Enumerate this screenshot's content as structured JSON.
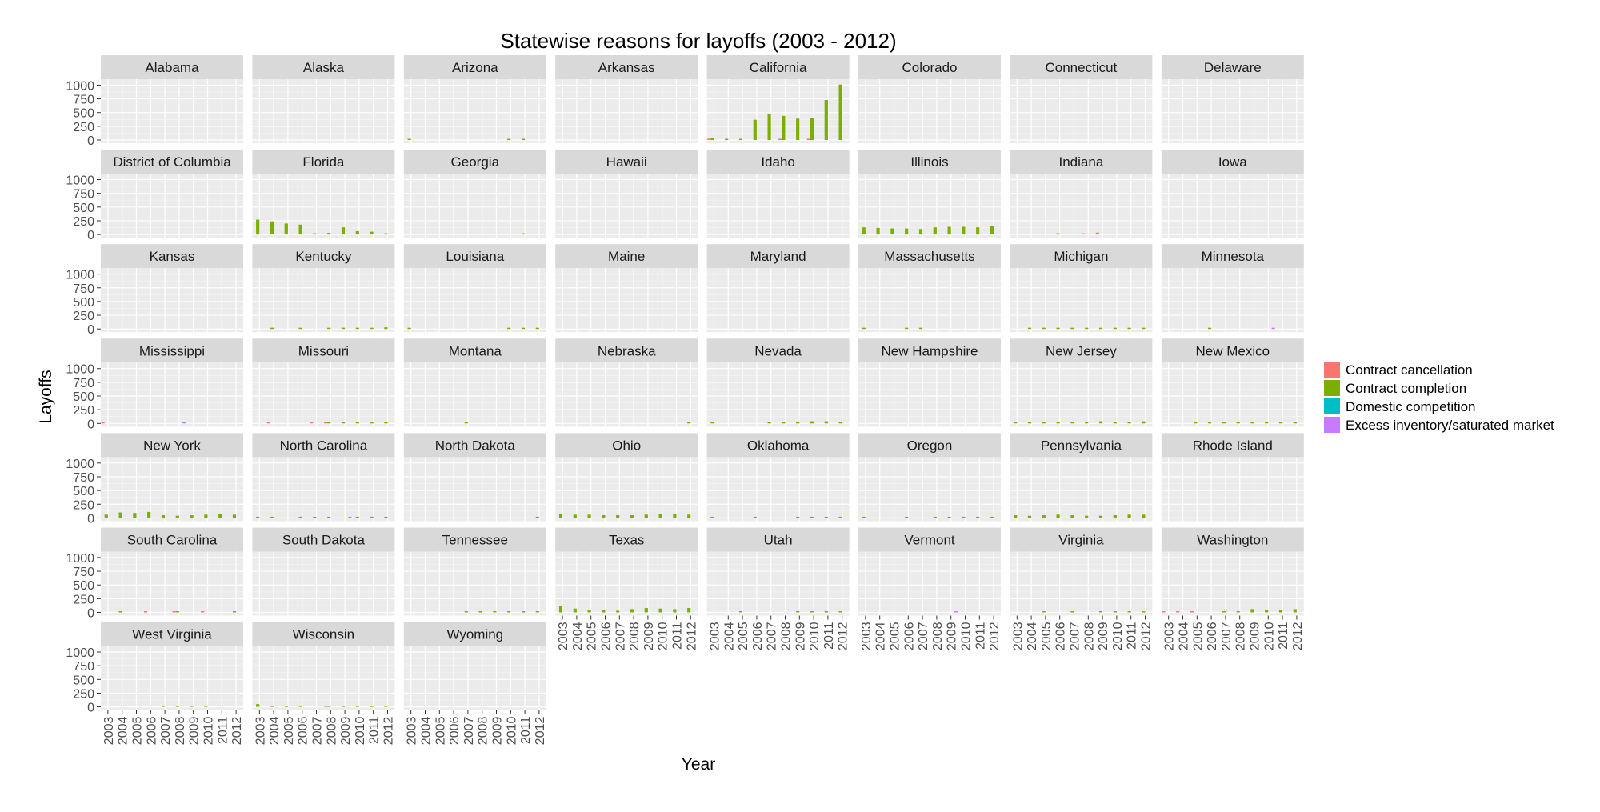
{
  "chart_data": {
    "type": "bar",
    "title": "Statewise reasons for layoffs (2003 - 2012)",
    "xlabel": "Year",
    "ylabel": "Layoffs",
    "ylim": [
      0,
      1050
    ],
    "y_ticks": [
      0,
      250,
      500,
      750,
      1000
    ],
    "y_tick_labels": [
      "0",
      "250",
      "500",
      "750",
      "1000"
    ],
    "years": [
      "2003",
      "2004",
      "2005",
      "2006",
      "2007",
      "2008",
      "2009",
      "2010",
      "2011",
      "2012"
    ],
    "grid": true,
    "legend_position": "right",
    "series": [
      {
        "name": "Contract cancellation",
        "color": "#F8766D"
      },
      {
        "name": "Contract completion",
        "color": "#7CAE00"
      },
      {
        "name": "Domestic competition",
        "color": "#00BFC4"
      },
      {
        "name": "Excess inventory/saturated market",
        "color": "#C77CFF"
      }
    ],
    "facets": [
      {
        "state": "Alabama",
        "bars": []
      },
      {
        "state": "Alaska",
        "bars": []
      },
      {
        "state": "Arizona",
        "bars": [
          [
            0,
            1,
            10
          ],
          [
            7,
            1,
            8
          ],
          [
            8,
            1,
            8
          ]
        ]
      },
      {
        "state": "Arkansas",
        "bars": []
      },
      {
        "state": "California",
        "bars": [
          [
            0,
            0,
            10
          ],
          [
            0,
            1,
            30
          ],
          [
            1,
            1,
            20
          ],
          [
            2,
            1,
            20
          ],
          [
            3,
            1,
            370
          ],
          [
            4,
            1,
            470
          ],
          [
            5,
            0,
            20
          ],
          [
            5,
            1,
            440
          ],
          [
            6,
            1,
            390
          ],
          [
            7,
            0,
            10
          ],
          [
            7,
            1,
            400
          ],
          [
            8,
            1,
            730
          ],
          [
            9,
            1,
            1010
          ]
        ]
      },
      {
        "state": "Colorado",
        "bars": []
      },
      {
        "state": "Connecticut",
        "bars": []
      },
      {
        "state": "Delaware",
        "bars": []
      },
      {
        "state": "District of Columbia",
        "bars": []
      },
      {
        "state": "Florida",
        "bars": [
          [
            0,
            1,
            270
          ],
          [
            1,
            1,
            240
          ],
          [
            2,
            1,
            200
          ],
          [
            3,
            1,
            180
          ],
          [
            4,
            1,
            20
          ],
          [
            5,
            1,
            30
          ],
          [
            6,
            1,
            130
          ],
          [
            7,
            1,
            60
          ],
          [
            8,
            1,
            50
          ],
          [
            9,
            1,
            20
          ]
        ]
      },
      {
        "state": "Georgia",
        "bars": [
          [
            8,
            1,
            20
          ]
        ]
      },
      {
        "state": "Hawaii",
        "bars": []
      },
      {
        "state": "Idaho",
        "bars": []
      },
      {
        "state": "Illinois",
        "bars": [
          [
            0,
            1,
            130
          ],
          [
            1,
            1,
            120
          ],
          [
            2,
            1,
            110
          ],
          [
            3,
            1,
            110
          ],
          [
            4,
            1,
            100
          ],
          [
            5,
            1,
            130
          ],
          [
            6,
            1,
            140
          ],
          [
            7,
            1,
            140
          ],
          [
            8,
            1,
            130
          ],
          [
            9,
            1,
            150
          ]
        ]
      },
      {
        "state": "Indiana",
        "bars": [
          [
            3,
            1,
            15
          ],
          [
            5,
            0,
            10
          ],
          [
            6,
            0,
            35
          ]
        ]
      },
      {
        "state": "Iowa",
        "bars": []
      },
      {
        "state": "Kansas",
        "bars": []
      },
      {
        "state": "Kentucky",
        "bars": [
          [
            1,
            1,
            10
          ],
          [
            3,
            1,
            10
          ],
          [
            5,
            1,
            10
          ],
          [
            6,
            1,
            10
          ],
          [
            7,
            1,
            20
          ],
          [
            8,
            1,
            20
          ],
          [
            9,
            1,
            30
          ]
        ]
      },
      {
        "state": "Louisiana",
        "bars": [
          [
            0,
            1,
            10
          ],
          [
            7,
            1,
            10
          ],
          [
            8,
            1,
            20
          ],
          [
            9,
            1,
            20
          ]
        ]
      },
      {
        "state": "Maine",
        "bars": []
      },
      {
        "state": "Maryland",
        "bars": []
      },
      {
        "state": "Massachusetts",
        "bars": [
          [
            0,
            1,
            10
          ],
          [
            3,
            1,
            10
          ],
          [
            4,
            1,
            10
          ]
        ]
      },
      {
        "state": "Michigan",
        "bars": [
          [
            1,
            1,
            10
          ],
          [
            2,
            1,
            20
          ],
          [
            3,
            1,
            20
          ],
          [
            4,
            1,
            20
          ],
          [
            5,
            1,
            20
          ],
          [
            6,
            1,
            20
          ],
          [
            7,
            1,
            20
          ],
          [
            8,
            1,
            20
          ],
          [
            9,
            1,
            20
          ]
        ]
      },
      {
        "state": "Minnesota",
        "bars": [
          [
            3,
            1,
            10
          ],
          [
            7,
            3,
            10
          ]
        ]
      },
      {
        "state": "Mississippi",
        "bars": [
          [
            0,
            0,
            10
          ],
          [
            5,
            3,
            10
          ]
        ]
      },
      {
        "state": "Missouri",
        "bars": [
          [
            1,
            0,
            10
          ],
          [
            4,
            0,
            10
          ],
          [
            5,
            0,
            10
          ],
          [
            5,
            1,
            10
          ],
          [
            6,
            1,
            15
          ],
          [
            7,
            1,
            20
          ],
          [
            8,
            1,
            20
          ],
          [
            9,
            1,
            20
          ]
        ]
      },
      {
        "state": "Montana",
        "bars": [
          [
            4,
            1,
            10
          ]
        ]
      },
      {
        "state": "Nebraska",
        "bars": [
          [
            9,
            1,
            10
          ]
        ]
      },
      {
        "state": "Nevada",
        "bars": [
          [
            0,
            1,
            10
          ],
          [
            4,
            1,
            10
          ],
          [
            5,
            1,
            20
          ],
          [
            6,
            1,
            30
          ],
          [
            7,
            1,
            40
          ],
          [
            8,
            1,
            40
          ],
          [
            9,
            1,
            30
          ]
        ]
      },
      {
        "state": "New Hampshire",
        "bars": []
      },
      {
        "state": "New Jersey",
        "bars": [
          [
            0,
            1,
            15
          ],
          [
            1,
            1,
            15
          ],
          [
            2,
            1,
            15
          ],
          [
            3,
            1,
            15
          ],
          [
            4,
            1,
            20
          ],
          [
            5,
            1,
            30
          ],
          [
            6,
            1,
            40
          ],
          [
            7,
            1,
            30
          ],
          [
            8,
            1,
            30
          ],
          [
            9,
            1,
            40
          ]
        ]
      },
      {
        "state": "New Mexico",
        "bars": [
          [
            2,
            1,
            10
          ],
          [
            3,
            1,
            10
          ],
          [
            4,
            1,
            10
          ],
          [
            5,
            1,
            10
          ],
          [
            6,
            1,
            10
          ],
          [
            7,
            1,
            10
          ],
          [
            8,
            1,
            10
          ],
          [
            9,
            1,
            10
          ]
        ]
      },
      {
        "state": "New York",
        "bars": [
          [
            0,
            1,
            60
          ],
          [
            1,
            1,
            100
          ],
          [
            2,
            1,
            90
          ],
          [
            3,
            1,
            110
          ],
          [
            4,
            1,
            50
          ],
          [
            5,
            1,
            40
          ],
          [
            6,
            1,
            50
          ],
          [
            7,
            1,
            60
          ],
          [
            8,
            1,
            70
          ],
          [
            9,
            1,
            60
          ]
        ]
      },
      {
        "state": "North Carolina",
        "bars": [
          [
            0,
            1,
            10
          ],
          [
            1,
            1,
            10
          ],
          [
            3,
            1,
            10
          ],
          [
            4,
            1,
            10
          ],
          [
            5,
            1,
            10
          ],
          [
            6,
            3,
            10
          ],
          [
            7,
            1,
            20
          ],
          [
            8,
            1,
            15
          ],
          [
            9,
            1,
            10
          ]
        ]
      },
      {
        "state": "North Dakota",
        "bars": [
          [
            9,
            1,
            10
          ]
        ]
      },
      {
        "state": "Ohio",
        "bars": [
          [
            0,
            1,
            80
          ],
          [
            1,
            1,
            60
          ],
          [
            2,
            1,
            60
          ],
          [
            3,
            1,
            50
          ],
          [
            4,
            1,
            50
          ],
          [
            5,
            1,
            50
          ],
          [
            6,
            1,
            60
          ],
          [
            7,
            1,
            70
          ],
          [
            8,
            1,
            70
          ],
          [
            9,
            1,
            60
          ]
        ]
      },
      {
        "state": "Oklahoma",
        "bars": [
          [
            0,
            1,
            10
          ],
          [
            3,
            1,
            10
          ],
          [
            6,
            1,
            10
          ],
          [
            7,
            1,
            10
          ],
          [
            8,
            1,
            10
          ],
          [
            9,
            1,
            10
          ]
        ]
      },
      {
        "state": "Oregon",
        "bars": [
          [
            0,
            1,
            10
          ],
          [
            3,
            1,
            10
          ],
          [
            5,
            1,
            10
          ],
          [
            6,
            1,
            10
          ],
          [
            7,
            1,
            10
          ],
          [
            8,
            1,
            10
          ],
          [
            9,
            1,
            10
          ]
        ]
      },
      {
        "state": "Pennsylvania",
        "bars": [
          [
            0,
            1,
            50
          ],
          [
            1,
            1,
            40
          ],
          [
            2,
            1,
            50
          ],
          [
            3,
            1,
            60
          ],
          [
            4,
            1,
            50
          ],
          [
            5,
            1,
            40
          ],
          [
            6,
            1,
            40
          ],
          [
            7,
            1,
            50
          ],
          [
            8,
            1,
            60
          ],
          [
            9,
            1,
            60
          ]
        ]
      },
      {
        "state": "Rhode Island",
        "bars": []
      },
      {
        "state": "South Carolina",
        "bars": [
          [
            1,
            1,
            10
          ],
          [
            3,
            0,
            10
          ],
          [
            5,
            0,
            10
          ],
          [
            5,
            1,
            10
          ],
          [
            7,
            0,
            10
          ],
          [
            9,
            1,
            10
          ]
        ]
      },
      {
        "state": "South Dakota",
        "bars": []
      },
      {
        "state": "Tennessee",
        "bars": [
          [
            4,
            1,
            10
          ],
          [
            5,
            1,
            10
          ],
          [
            6,
            1,
            10
          ],
          [
            7,
            1,
            10
          ],
          [
            8,
            1,
            10
          ],
          [
            9,
            1,
            10
          ]
        ]
      },
      {
        "state": "Texas",
        "bars": [
          [
            0,
            1,
            110
          ],
          [
            1,
            1,
            70
          ],
          [
            2,
            1,
            50
          ],
          [
            3,
            1,
            40
          ],
          [
            4,
            1,
            30
          ],
          [
            5,
            1,
            60
          ],
          [
            6,
            1,
            80
          ],
          [
            7,
            1,
            70
          ],
          [
            8,
            1,
            60
          ],
          [
            9,
            1,
            80
          ]
        ]
      },
      {
        "state": "Utah",
        "bars": [
          [
            2,
            1,
            10
          ],
          [
            6,
            1,
            10
          ],
          [
            7,
            1,
            10
          ],
          [
            8,
            1,
            10
          ],
          [
            9,
            1,
            10
          ]
        ]
      },
      {
        "state": "Vermont",
        "bars": [
          [
            6,
            3,
            10
          ]
        ]
      },
      {
        "state": "Virginia",
        "bars": [
          [
            2,
            1,
            10
          ],
          [
            4,
            1,
            10
          ],
          [
            6,
            1,
            10
          ],
          [
            7,
            1,
            20
          ],
          [
            8,
            1,
            20
          ],
          [
            9,
            1,
            20
          ]
        ]
      },
      {
        "state": "Washington",
        "bars": [
          [
            0,
            0,
            10
          ],
          [
            1,
            0,
            10
          ],
          [
            2,
            0,
            10
          ],
          [
            4,
            1,
            10
          ],
          [
            5,
            1,
            20
          ],
          [
            6,
            1,
            60
          ],
          [
            7,
            1,
            50
          ],
          [
            8,
            1,
            50
          ],
          [
            9,
            1,
            60
          ]
        ]
      },
      {
        "state": "West Virginia",
        "bars": [
          [
            4,
            1,
            15
          ],
          [
            5,
            1,
            15
          ],
          [
            6,
            1,
            10
          ],
          [
            7,
            1,
            10
          ]
        ]
      },
      {
        "state": "Wisconsin",
        "bars": [
          [
            0,
            1,
            50
          ],
          [
            1,
            1,
            20
          ],
          [
            2,
            1,
            20
          ],
          [
            3,
            1,
            20
          ],
          [
            5,
            0,
            10
          ],
          [
            5,
            1,
            10
          ],
          [
            6,
            1,
            10
          ],
          [
            7,
            1,
            20
          ],
          [
            8,
            1,
            20
          ],
          [
            9,
            1,
            20
          ]
        ]
      },
      {
        "state": "Wyoming",
        "bars": []
      }
    ]
  }
}
